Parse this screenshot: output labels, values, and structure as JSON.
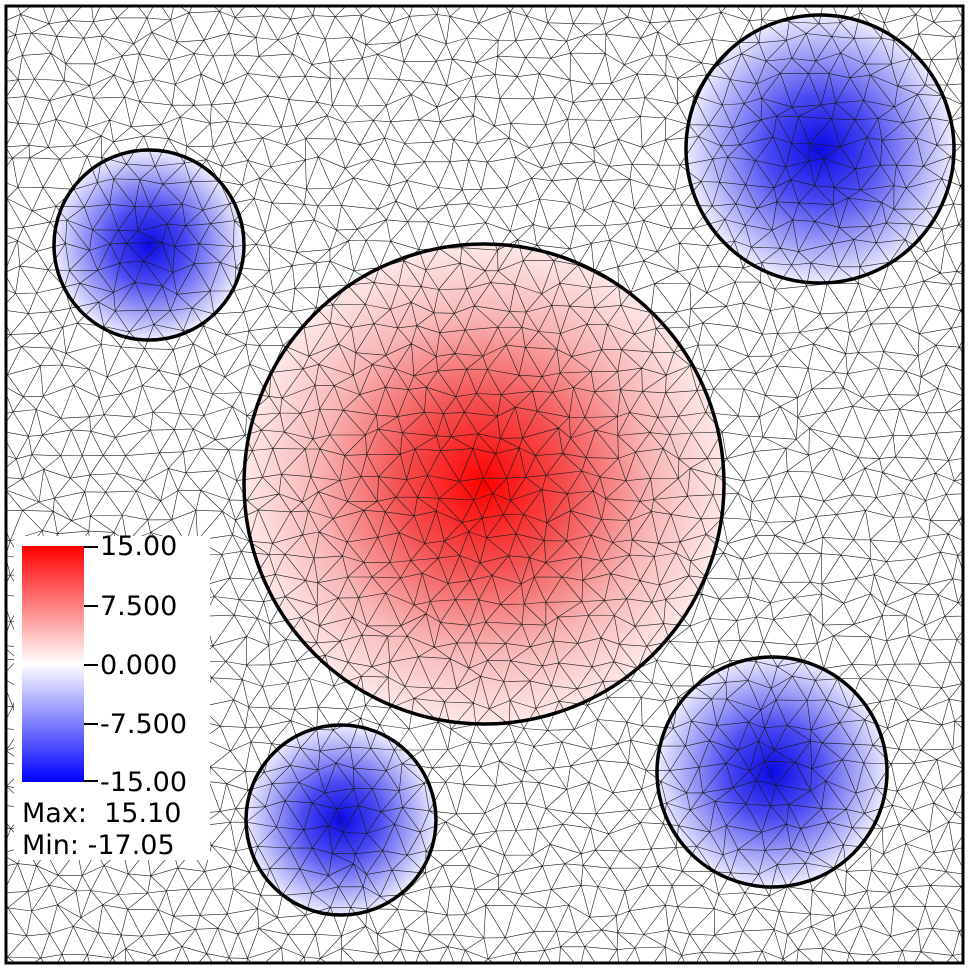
{
  "legend": {
    "ticks": [
      "15.00",
      "7.500",
      "0.000",
      "-7.500",
      "-15.00"
    ],
    "max_label": "Max:  15.10",
    "min_label": "Min: -17.05",
    "colormap": [
      "#0000ff",
      "#ffffff",
      "#ff0000"
    ]
  },
  "field": {
    "type": "triangulated-mesh-scalar-field",
    "range": [
      -15.0,
      15.0
    ],
    "max": 15.1,
    "min": -17.05,
    "regions": [
      {
        "name": "large-red-disc",
        "peak": 15.1
      },
      {
        "name": "top-left-blue-disc",
        "peak": -15.0
      },
      {
        "name": "top-right-blue-disc",
        "peak": -17.05
      },
      {
        "name": "bottom-left-blue-disc",
        "peak": -15.0
      },
      {
        "name": "bottom-right-blue-disc",
        "peak": -16.0
      }
    ]
  }
}
